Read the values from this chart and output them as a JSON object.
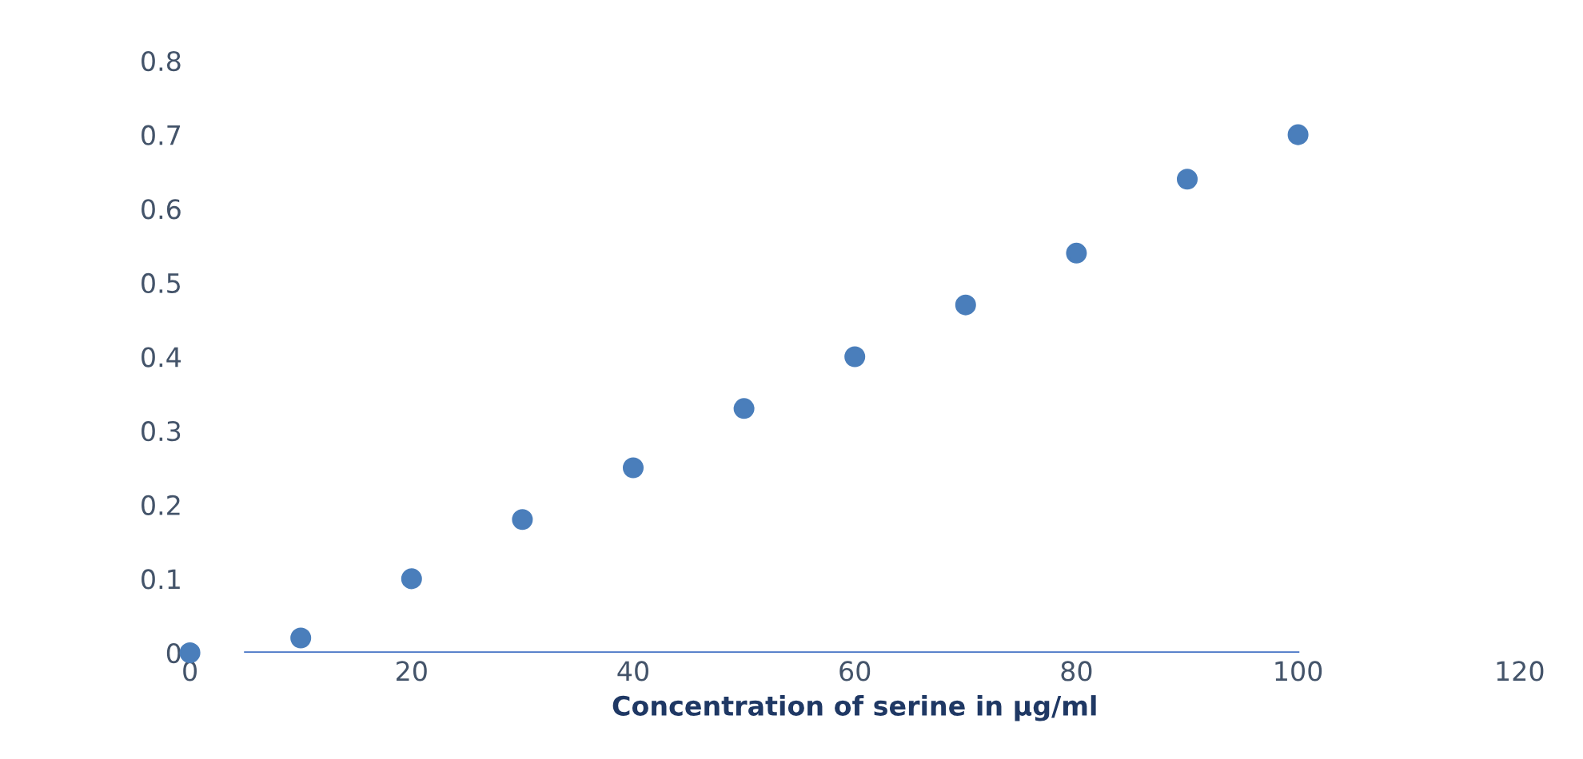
{
  "chart_data": {
    "type": "scatter",
    "xlabel": "Concentration of serine in µg/ml",
    "x": [
      0,
      10,
      20,
      30,
      40,
      50,
      60,
      70,
      80,
      90,
      100
    ],
    "series": [
      {
        "color": "#4a7ebb",
        "marker": "circle",
        "values": [
          0,
          0.02,
          0.1,
          0.18,
          0.25,
          0.33,
          0.4,
          0.47,
          0.54,
          0.64,
          0.7
        ]
      },
      {
        "type": "line",
        "color": "#4472c4",
        "x": [
          5,
          100
        ],
        "values": [
          0,
          0
        ]
      }
    ],
    "xlim": [
      0,
      120
    ],
    "ylim": [
      0,
      0.8
    ],
    "xticks": [
      0,
      20,
      40,
      60,
      80,
      100,
      120
    ],
    "yticks": [
      0,
      0.1,
      0.2,
      0.3,
      0.4,
      0.5,
      0.6,
      0.7,
      0.8
    ],
    "grid": false,
    "legend": false
  }
}
